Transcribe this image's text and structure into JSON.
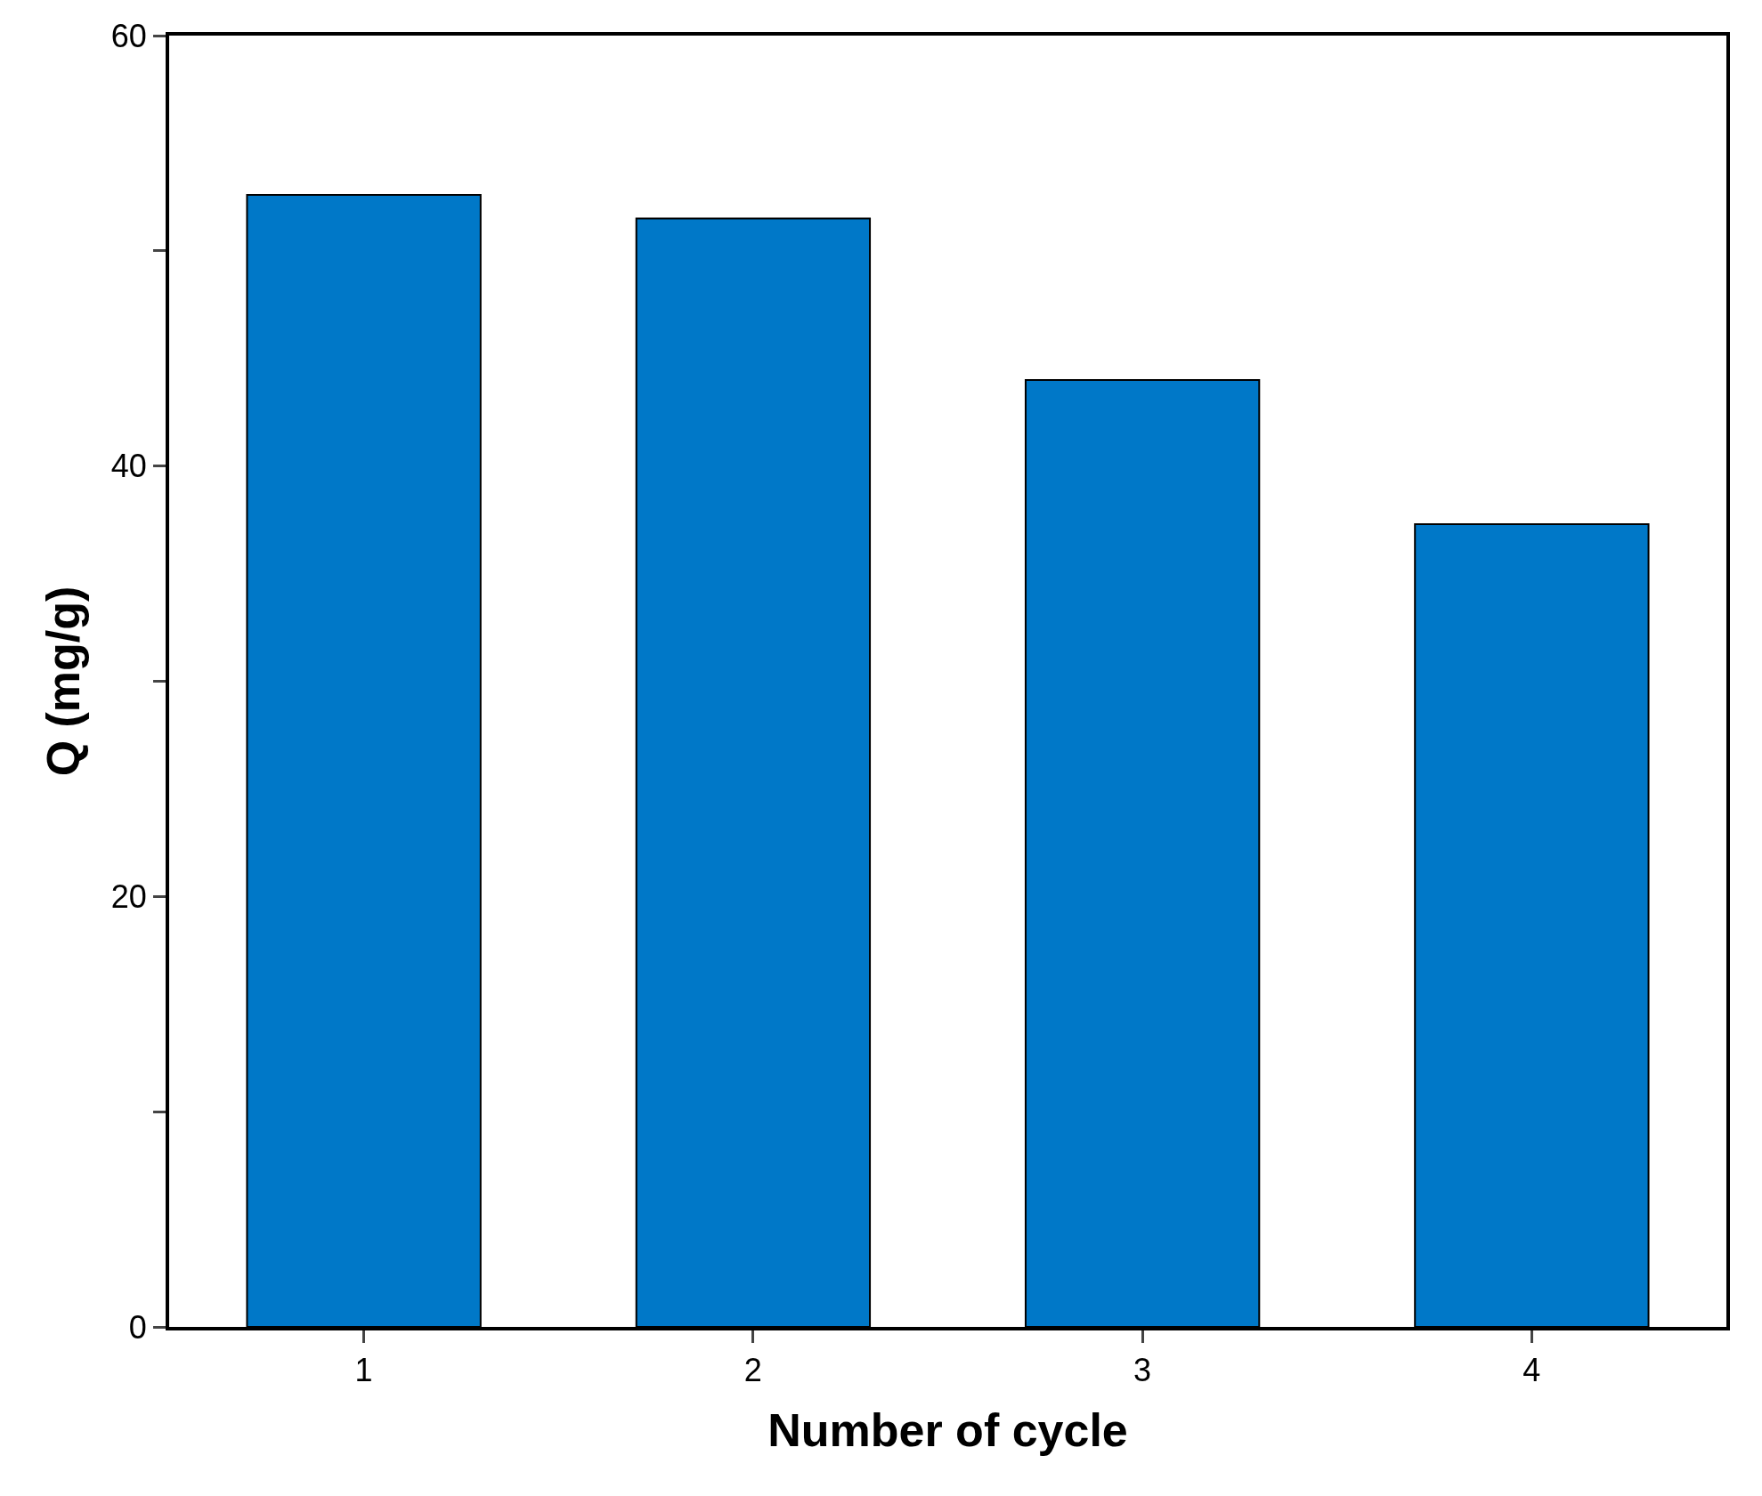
{
  "chart_data": {
    "type": "bar",
    "xlabel": "Number of cycle",
    "ylabel": "Q (mg/g)",
    "categories": [
      "1",
      "2",
      "3",
      "4"
    ],
    "values": [
      52.6,
      51.5,
      44.0,
      37.3
    ],
    "color": "#0078c8",
    "ylim": [
      0,
      60
    ],
    "yticks": [
      0,
      {
        "value": 10,
        "label": null
      },
      20,
      {
        "value": 30,
        "label": null
      },
      40,
      {
        "value": 50,
        "label": null
      },
      60
    ]
  }
}
